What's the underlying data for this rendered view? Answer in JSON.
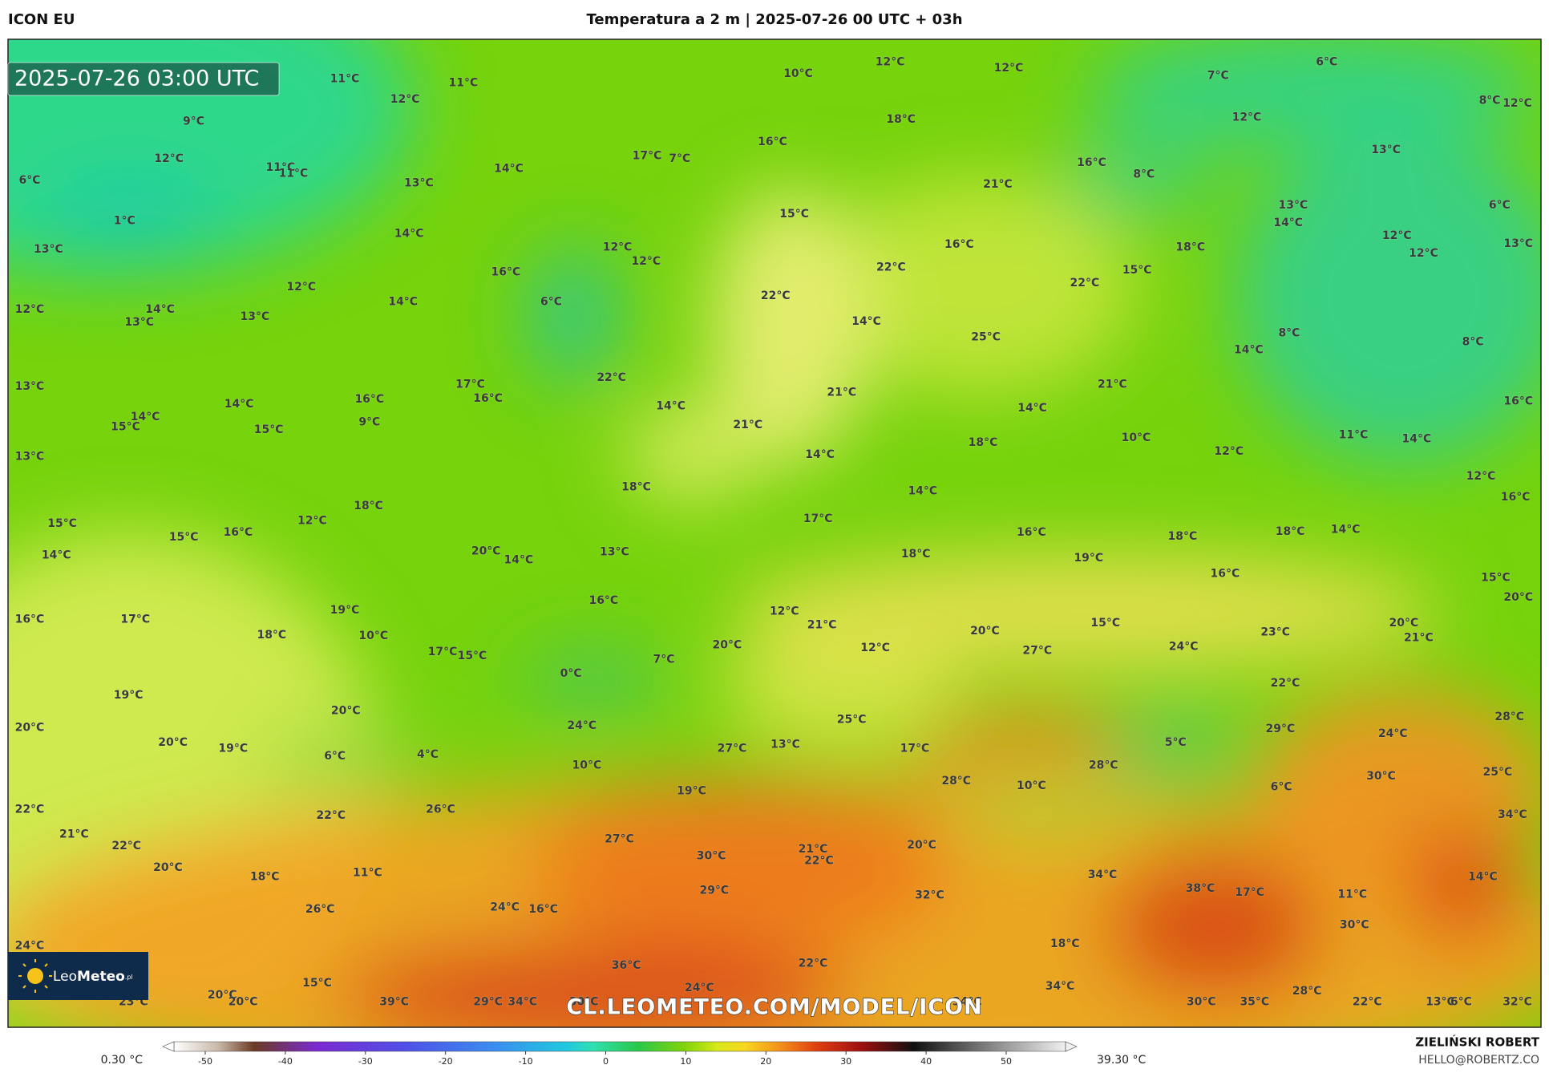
{
  "header": {
    "model": "ICON EU",
    "title": "Temperatura a 2 m | 2025-07-26 00 UTC + 03h"
  },
  "map": {
    "timestamp": "2025-07-26 03:00 UTC",
    "watermark": "CL.LEOMETEO.COM/MODEL/ICON",
    "logo": {
      "part1": "Leo",
      "part2": "Meteo",
      "part3": ".pl"
    },
    "temperature_labels": [
      "11°C",
      "11°C",
      "10°C",
      "12°C",
      "12°C",
      "7°C",
      "6°C",
      "8°C",
      "12°C",
      "12°C",
      "9°C",
      "18°C",
      "12°C",
      "17°C",
      "7°C",
      "16°C",
      "16°C",
      "8°C",
      "13°C",
      "12°C",
      "11°C",
      "11°C",
      "13°C",
      "14°C",
      "6°C",
      "21°C",
      "1°C",
      "15°C",
      "13°C",
      "14°C",
      "6°C",
      "13°C",
      "14°C",
      "12°C",
      "12°C",
      "16°C",
      "18°C",
      "12°C",
      "12°C",
      "13°C",
      "16°C",
      "22°C",
      "15°C",
      "22°C",
      "12°C",
      "12°C",
      "14°C",
      "13°C",
      "13°C",
      "14°C",
      "6°C",
      "22°C",
      "14°C",
      "25°C",
      "8°C",
      "8°C",
      "14°C",
      "13°C",
      "17°C",
      "16°C",
      "22°C",
      "16°C",
      "21°C",
      "21°C",
      "14°C",
      "14°C",
      "16°C",
      "14°C",
      "14°C",
      "15°C",
      "15°C",
      "9°C",
      "21°C",
      "18°C",
      "10°C",
      "11°C",
      "14°C",
      "12°C",
      "13°C",
      "14°C",
      "18°C",
      "14°C",
      "12°C",
      "18°C",
      "12°C",
      "17°C",
      "16°C",
      "15°C",
      "15°C",
      "16°C",
      "16°C",
      "18°C",
      "18°C",
      "14°C",
      "14°C",
      "20°C",
      "14°C",
      "13°C",
      "18°C",
      "19°C",
      "16°C",
      "15°C",
      "20°C",
      "16°C",
      "12°C",
      "19°C",
      "16°C",
      "17°C",
      "21°C",
      "20°C",
      "15°C",
      "24°C",
      "23°C",
      "20°C",
      "21°C",
      "10°C",
      "18°C",
      "20°C",
      "12°C",
      "27°C",
      "17°C",
      "15°C",
      "7°C",
      "0°C",
      "22°C",
      "19°C",
      "20°C",
      "25°C",
      "28°C",
      "20°C",
      "24°C",
      "29°C",
      "24°C",
      "20°C",
      "19°C",
      "13°C",
      "27°C",
      "5°C",
      "17°C",
      "6°C",
      "4°C",
      "10°C",
      "28°C",
      "25°C",
      "30°C",
      "28°C",
      "10°C",
      "6°C",
      "19°C",
      "22°C",
      "26°C",
      "22°C",
      "34°C",
      "21°C",
      "27°C",
      "22°C",
      "20°C",
      "21°C",
      "30°C",
      "22°C",
      "20°C",
      "11°C",
      "34°C",
      "14°C",
      "18°C",
      "38°C",
      "29°C",
      "17°C",
      "32°C",
      "11°C",
      "26°C",
      "24°C",
      "16°C",
      "30°C",
      "24°C",
      "18°C",
      "36°C",
      "22°C",
      "15°C",
      "24°C",
      "34°C",
      "28°C",
      "20°C",
      "23°C",
      "20°C",
      "39°C",
      "29°C",
      "34°C",
      "30°C",
      "34°C",
      "30°C",
      "35°C",
      "22°C",
      "13°C",
      "6°C",
      "32°C"
    ]
  },
  "colorbar": {
    "min_label": "0.30 °C",
    "max_label": "39.30 °C",
    "ticks": [
      -50,
      -40,
      -30,
      -20,
      -10,
      0,
      10,
      20,
      30,
      40,
      50
    ]
  },
  "credit": {
    "author": "ZIELIŃSKI ROBERT",
    "contact": "HELLO@ROBERTZ.CO"
  }
}
